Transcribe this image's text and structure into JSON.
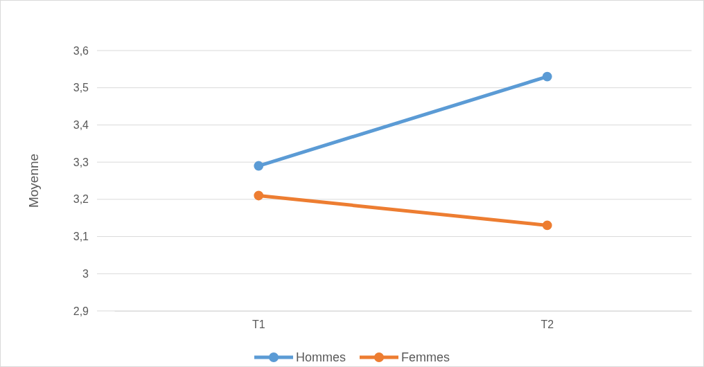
{
  "chart_data": {
    "type": "line",
    "ylabel": "Moyenne",
    "categories": [
      "T1",
      "T2"
    ],
    "series": [
      {
        "name": "Hommes",
        "color": "#5b9bd5",
        "values": [
          3.29,
          3.53
        ]
      },
      {
        "name": "Femmes",
        "color": "#ed7d31",
        "values": [
          3.21,
          3.13
        ]
      }
    ],
    "ylim": [
      2.9,
      3.6
    ],
    "yticks": [
      {
        "value": 2.9,
        "label": "2,9"
      },
      3,
      {
        "value": 3.1,
        "label": "3,1"
      },
      {
        "value": 3.2,
        "label": "3,2"
      },
      {
        "value": 3.3,
        "label": "3,3"
      },
      {
        "value": 3.4,
        "label": "3,4"
      },
      {
        "value": 3.5,
        "label": "3,5"
      },
      {
        "value": 3.6,
        "label": "3,6"
      }
    ],
    "grid": "y",
    "legend": "bottom",
    "marker": "circle",
    "line_style": "solid"
  }
}
